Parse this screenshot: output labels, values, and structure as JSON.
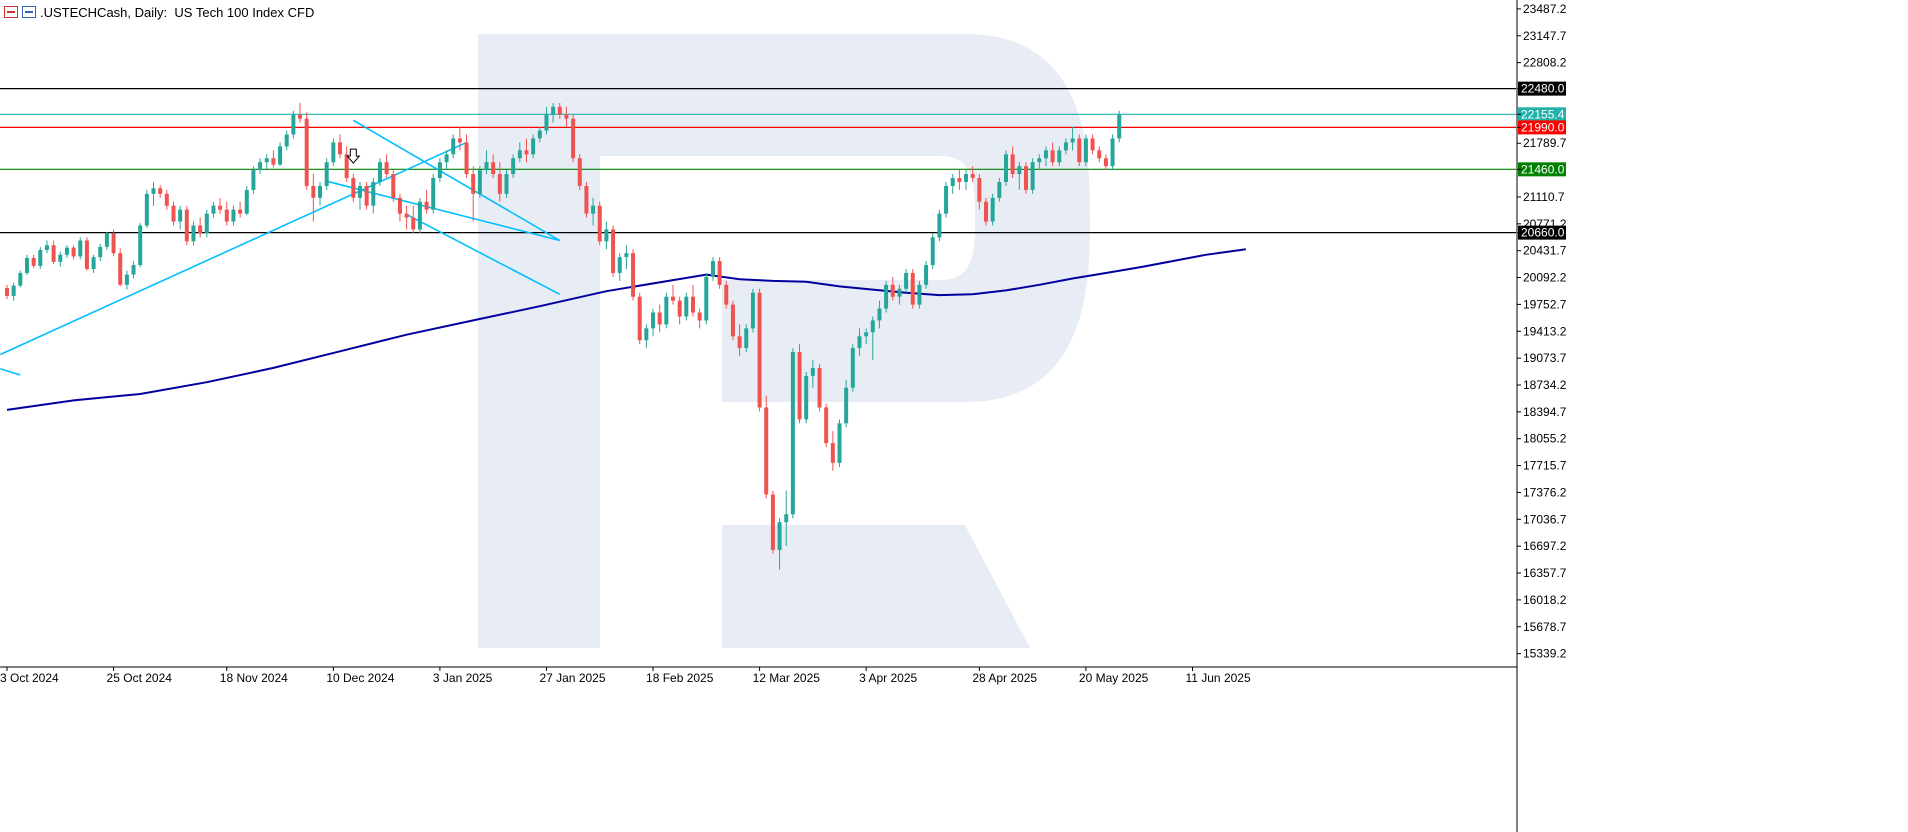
{
  "header": {
    "symbol": ".USTECHCash",
    "period": "Daily",
    "description": "US Tech 100 Index CFD"
  },
  "chart_data": {
    "type": "candlestick",
    "ylim": [
      15170,
      23600
    ],
    "y_ticks": [
      "23487.2",
      "23147.7",
      "22808.2",
      "22480.0",
      "22155.4",
      "21990.0",
      "21789.7",
      "21460.0",
      "21110.7",
      "20771.2",
      "20660.0",
      "20431.7",
      "20092.2",
      "19752.7",
      "19413.2",
      "19073.7",
      "18734.2",
      "18394.7",
      "18055.2",
      "17715.7",
      "17376.2",
      "17036.7",
      "16697.2",
      "16357.7",
      "16018.2",
      "15678.7",
      "15339.2"
    ],
    "x_labels": [
      {
        "label": "3 Oct 2024",
        "index": 0
      },
      {
        "label": "25 Oct 2024",
        "index": 16
      },
      {
        "label": "18 Nov 2024",
        "index": 33
      },
      {
        "label": "10 Dec 2024",
        "index": 49
      },
      {
        "label": "3 Jan 2025",
        "index": 65
      },
      {
        "label": "27 Jan 2025",
        "index": 81
      },
      {
        "label": "18 Feb 2025",
        "index": 97
      },
      {
        "label": "12 Mar 2025",
        "index": 113
      },
      {
        "label": "3 Apr 2025",
        "index": 129
      },
      {
        "label": "28 Apr 2025",
        "index": 146
      },
      {
        "label": "20 May 2025",
        "index": 162
      },
      {
        "label": "11 Jun 2025",
        "index": 178
      }
    ],
    "levels": [
      {
        "value": 22480.0,
        "label": "22480.0",
        "color": "#000000"
      },
      {
        "value": 22155.4,
        "label": "22155.4",
        "color": "#20b2aa"
      },
      {
        "value": 21990.0,
        "label": "21990.0",
        "color": "#ff0000"
      },
      {
        "value": 21460.0,
        "label": "21460.0",
        "color": "#008000"
      },
      {
        "value": 20660.0,
        "label": "20660.0",
        "color": "#000000"
      }
    ],
    "colors": {
      "up": "#26a69a",
      "down": "#ef5350",
      "ma": "#0000a0",
      "trend": "#00bfff",
      "grid": "#c8c8c8",
      "watermark": "#e8edf5"
    },
    "candles": [
      [
        19960,
        20000,
        19820,
        19860
      ],
      [
        19860,
        20030,
        19800,
        19990
      ],
      [
        19990,
        20180,
        19970,
        20150
      ],
      [
        20150,
        20380,
        20120,
        20340
      ],
      [
        20340,
        20380,
        20210,
        20240
      ],
      [
        20240,
        20480,
        20200,
        20440
      ],
      [
        20440,
        20560,
        20400,
        20500
      ],
      [
        20500,
        20560,
        20260,
        20290
      ],
      [
        20290,
        20420,
        20230,
        20380
      ],
      [
        20380,
        20500,
        20340,
        20470
      ],
      [
        20470,
        20500,
        20320,
        20360
      ],
      [
        20360,
        20600,
        20320,
        20560
      ],
      [
        20560,
        20600,
        20180,
        20200
      ],
      [
        20200,
        20380,
        20150,
        20350
      ],
      [
        20350,
        20520,
        20300,
        20480
      ],
      [
        20480,
        20670,
        20440,
        20650
      ],
      [
        20650,
        20700,
        20360,
        20400
      ],
      [
        20400,
        20460,
        19980,
        20000
      ],
      [
        20000,
        20180,
        19940,
        20130
      ],
      [
        20130,
        20300,
        20080,
        20250
      ],
      [
        20250,
        20780,
        20220,
        20750
      ],
      [
        20750,
        21200,
        20720,
        21150
      ],
      [
        21150,
        21300,
        21000,
        21220
      ],
      [
        21220,
        21260,
        21100,
        21150
      ],
      [
        21150,
        21200,
        20950,
        21000
      ],
      [
        21000,
        21050,
        20750,
        20800
      ],
      [
        20800,
        21000,
        20700,
        20950
      ],
      [
        20950,
        21000,
        20500,
        20550
      ],
      [
        20550,
        20800,
        20500,
        20750
      ],
      [
        20750,
        20850,
        20600,
        20650
      ],
      [
        20650,
        20950,
        20600,
        20900
      ],
      [
        20900,
        21050,
        20850,
        21000
      ],
      [
        21000,
        21100,
        20900,
        20950
      ],
      [
        20950,
        21050,
        20750,
        20800
      ],
      [
        20800,
        21000,
        20750,
        20950
      ],
      [
        20950,
        21050,
        20850,
        20900
      ],
      [
        20900,
        21250,
        20880,
        21200
      ],
      [
        21200,
        21500,
        21150,
        21450
      ],
      [
        21450,
        21600,
        21400,
        21550
      ],
      [
        21550,
        21650,
        21450,
        21600
      ],
      [
        21600,
        21700,
        21480,
        21520
      ],
      [
        21520,
        21800,
        21500,
        21750
      ],
      [
        21750,
        21950,
        21700,
        21900
      ],
      [
        21900,
        22200,
        21850,
        22150
      ],
      [
        22150,
        22300,
        22050,
        22100
      ],
      [
        22100,
        22180,
        21200,
        21250
      ],
      [
        21250,
        21400,
        20800,
        21100
      ],
      [
        21100,
        21300,
        21000,
        21250
      ],
      [
        21250,
        21600,
        21200,
        21550
      ],
      [
        21550,
        21850,
        21500,
        21800
      ],
      [
        21800,
        21900,
        21600,
        21650
      ],
      [
        21650,
        21750,
        21300,
        21350
      ],
      [
        21350,
        21400,
        21050,
        21100
      ],
      [
        21100,
        21300,
        20950,
        21250
      ],
      [
        21250,
        21300,
        20950,
        21000
      ],
      [
        21000,
        21350,
        20900,
        21300
      ],
      [
        21300,
        21600,
        21250,
        21550
      ],
      [
        21550,
        21650,
        21350,
        21400
      ],
      [
        21400,
        21450,
        21050,
        21100
      ],
      [
        21100,
        21150,
        20800,
        20900
      ],
      [
        20900,
        21000,
        20700,
        20850
      ],
      [
        20850,
        21000,
        20650,
        20700
      ],
      [
        20700,
        21100,
        20650,
        21050
      ],
      [
        21050,
        21200,
        20900,
        20950
      ],
      [
        20950,
        21400,
        20900,
        21350
      ],
      [
        21350,
        21600,
        21300,
        21550
      ],
      [
        21550,
        21700,
        21450,
        21650
      ],
      [
        21650,
        21900,
        21600,
        21850
      ],
      [
        21850,
        22000,
        21700,
        21800
      ],
      [
        21800,
        21900,
        21350,
        21400
      ],
      [
        21400,
        21500,
        20800,
        21150
      ],
      [
        21150,
        21500,
        21100,
        21450
      ],
      [
        21450,
        21700,
        21400,
        21550
      ],
      [
        21550,
        21650,
        21350,
        21400
      ],
      [
        21400,
        21550,
        21050,
        21150
      ],
      [
        21150,
        21450,
        21100,
        21400
      ],
      [
        21400,
        21650,
        21350,
        21600
      ],
      [
        21600,
        21800,
        21550,
        21700
      ],
      [
        21700,
        21850,
        21550,
        21650
      ],
      [
        21650,
        21900,
        21600,
        21850
      ],
      [
        21850,
        22000,
        21800,
        21950
      ],
      [
        21950,
        22250,
        21900,
        22150
      ],
      [
        22150,
        22300,
        22050,
        22250
      ],
      [
        22250,
        22300,
        22100,
        22150
      ],
      [
        22150,
        22250,
        22000,
        22100
      ],
      [
        22100,
        22150,
        21550,
        21600
      ],
      [
        21600,
        21650,
        21200,
        21250
      ],
      [
        21250,
        21300,
        20850,
        20900
      ],
      [
        20900,
        21100,
        20750,
        21000
      ],
      [
        21000,
        21050,
        20500,
        20550
      ],
      [
        20550,
        20800,
        20450,
        20700
      ],
      [
        20700,
        20750,
        20100,
        20150
      ],
      [
        20150,
        20400,
        20050,
        20350
      ],
      [
        20350,
        20500,
        20200,
        20400
      ],
      [
        20400,
        20450,
        19800,
        19850
      ],
      [
        19850,
        19900,
        19250,
        19300
      ],
      [
        19300,
        19500,
        19200,
        19450
      ],
      [
        19450,
        19700,
        19350,
        19650
      ],
      [
        19650,
        19750,
        19400,
        19500
      ],
      [
        19500,
        19900,
        19450,
        19850
      ],
      [
        19850,
        20000,
        19750,
        19800
      ],
      [
        19800,
        19850,
        19500,
        19600
      ],
      [
        19600,
        19900,
        19550,
        19850
      ],
      [
        19850,
        20000,
        19600,
        19650
      ],
      [
        19650,
        19700,
        19450,
        19550
      ],
      [
        19550,
        20150,
        19500,
        20100
      ],
      [
        20100,
        20350,
        20050,
        20300
      ],
      [
        20300,
        20350,
        19950,
        20000
      ],
      [
        20000,
        20050,
        19700,
        19750
      ],
      [
        19750,
        19800,
        19300,
        19350
      ],
      [
        19350,
        19500,
        19100,
        19200
      ],
      [
        19200,
        19500,
        19150,
        19450
      ],
      [
        19450,
        19950,
        19400,
        19900
      ],
      [
        19900,
        19950,
        18400,
        18450
      ],
      [
        18450,
        18600,
        17300,
        17350
      ],
      [
        17350,
        17400,
        16600,
        16650
      ],
      [
        16650,
        17050,
        16400,
        17000
      ],
      [
        17000,
        17400,
        16700,
        17100
      ],
      [
        17100,
        19200,
        17050,
        19150
      ],
      [
        19150,
        19250,
        18250,
        18300
      ],
      [
        18300,
        18900,
        18250,
        18850
      ],
      [
        18850,
        19050,
        18700,
        18950
      ],
      [
        18950,
        19000,
        18400,
        18450
      ],
      [
        18450,
        18500,
        17950,
        18000
      ],
      [
        18000,
        18150,
        17650,
        17750
      ],
      [
        17750,
        18300,
        17700,
        18250
      ],
      [
        18250,
        18800,
        18200,
        18700
      ],
      [
        18700,
        19250,
        18650,
        19200
      ],
      [
        19200,
        19450,
        19100,
        19350
      ],
      [
        19350,
        19450,
        19250,
        19400
      ],
      [
        19400,
        19600,
        19050,
        19550
      ],
      [
        19550,
        19800,
        19450,
        19700
      ],
      [
        19700,
        20050,
        19650,
        20000
      ],
      [
        20000,
        20100,
        19800,
        19850
      ],
      [
        19850,
        20000,
        19750,
        19950
      ],
      [
        19950,
        20200,
        19900,
        20150
      ],
      [
        20150,
        20200,
        19700,
        19750
      ],
      [
        19750,
        20050,
        19700,
        20000
      ],
      [
        20000,
        20300,
        19950,
        20250
      ],
      [
        20250,
        20650,
        20200,
        20600
      ],
      [
        20600,
        20950,
        20550,
        20900
      ],
      [
        20900,
        21300,
        20850,
        21250
      ],
      [
        21250,
        21400,
        21150,
        21350
      ],
      [
        21350,
        21450,
        21200,
        21300
      ],
      [
        21300,
        21450,
        21200,
        21400
      ],
      [
        21400,
        21500,
        21300,
        21350
      ],
      [
        21350,
        21400,
        20950,
        21050
      ],
      [
        21050,
        21100,
        20750,
        20800
      ],
      [
        20800,
        21150,
        20750,
        21100
      ],
      [
        21100,
        21350,
        21050,
        21300
      ],
      [
        21300,
        21700,
        21250,
        21650
      ],
      [
        21650,
        21750,
        21350,
        21400
      ],
      [
        21400,
        21550,
        21200,
        21500
      ],
      [
        21500,
        21550,
        21150,
        21200
      ],
      [
        21200,
        21600,
        21150,
        21550
      ],
      [
        21550,
        21650,
        21450,
        21600
      ],
      [
        21600,
        21750,
        21500,
        21700
      ],
      [
        21700,
        21800,
        21500,
        21550
      ],
      [
        21550,
        21750,
        21500,
        21700
      ],
      [
        21700,
        21850,
        21650,
        21800
      ],
      [
        21800,
        22000,
        21700,
        21850
      ],
      [
        21850,
        21900,
        21500,
        21550
      ],
      [
        21550,
        21900,
        21500,
        21850
      ],
      [
        21850,
        21900,
        21650,
        21700
      ],
      [
        21700,
        21750,
        21550,
        21600
      ],
      [
        21600,
        21650,
        21450,
        21500
      ],
      [
        21500,
        21900,
        21450,
        21850
      ],
      [
        21850,
        22200,
        21800,
        22150
      ]
    ],
    "moving_average": [
      [
        0,
        18420
      ],
      [
        10,
        18540
      ],
      [
        20,
        18620
      ],
      [
        30,
        18770
      ],
      [
        40,
        18950
      ],
      [
        50,
        19160
      ],
      [
        60,
        19370
      ],
      [
        70,
        19550
      ],
      [
        80,
        19730
      ],
      [
        90,
        19920
      ],
      [
        100,
        20060
      ],
      [
        105,
        20130
      ],
      [
        110,
        20070
      ],
      [
        115,
        20050
      ],
      [
        120,
        20040
      ],
      [
        125,
        19980
      ],
      [
        130,
        19940
      ],
      [
        135,
        19900
      ],
      [
        140,
        19870
      ],
      [
        145,
        19880
      ],
      [
        150,
        19930
      ],
      [
        155,
        20000
      ],
      [
        160,
        20080
      ],
      [
        165,
        20150
      ],
      [
        170,
        20220
      ],
      [
        175,
        20300
      ],
      [
        180,
        20380
      ],
      [
        186,
        20450
      ]
    ],
    "trendlines": [
      [
        [
          -1,
          19120
        ],
        [
          69,
          21800
        ]
      ],
      [
        [
          -1,
          18940
        ],
        [
          2,
          18860
        ]
      ],
      [
        [
          48,
          21310
        ],
        [
          83,
          20560
        ]
      ],
      [
        [
          52,
          22080
        ],
        [
          83,
          20560
        ]
      ],
      [
        [
          60,
          20890
        ],
        [
          83,
          19880
        ]
      ]
    ],
    "marker_index": 52
  }
}
